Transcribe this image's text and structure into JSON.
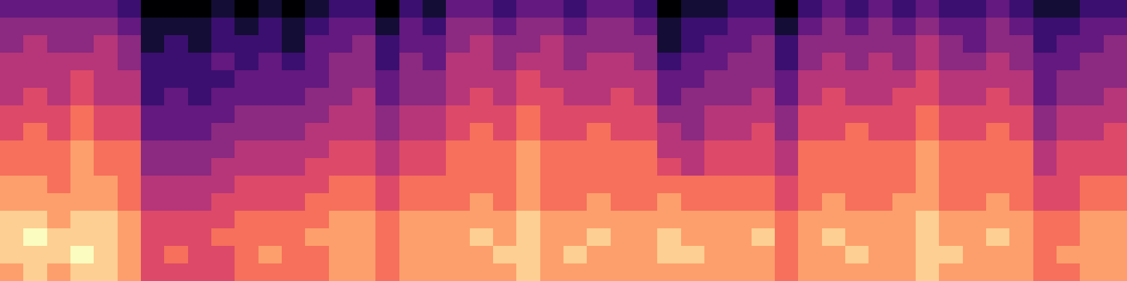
{
  "chart_data": {
    "type": "heatmap",
    "color": "magma",
    "tick_labels": false,
    "color_range": [
      0,
      10
    ],
    "cells": [
      [
        3,
        3,
        3,
        3,
        3,
        2,
        0,
        0,
        0,
        1,
        0,
        1,
        0,
        1,
        2,
        2,
        0,
        2,
        1,
        3,
        3,
        2,
        3,
        3,
        2,
        3,
        3,
        2,
        0,
        1,
        1,
        2,
        2,
        0,
        2,
        3,
        2,
        3,
        2,
        3,
        2,
        2,
        3,
        2,
        1,
        1,
        2,
        2
      ],
      [
        4,
        4,
        4,
        4,
        4,
        3,
        1,
        1,
        1,
        2,
        1,
        2,
        1,
        2,
        3,
        3,
        1,
        3,
        2,
        4,
        4,
        3,
        4,
        4,
        3,
        4,
        4,
        3,
        1,
        2,
        2,
        3,
        3,
        1,
        3,
        4,
        3,
        4,
        3,
        4,
        3,
        3,
        4,
        3,
        2,
        2,
        3,
        3
      ],
      [
        4,
        5,
        4,
        4,
        5,
        4,
        1,
        2,
        1,
        2,
        2,
        2,
        1,
        3,
        3,
        4,
        2,
        3,
        3,
        4,
        5,
        4,
        4,
        5,
        4,
        4,
        4,
        4,
        1,
        2,
        3,
        3,
        4,
        2,
        4,
        4,
        4,
        4,
        4,
        5,
        4,
        3,
        4,
        4,
        2,
        3,
        3,
        4
      ],
      [
        5,
        5,
        5,
        5,
        5,
        4,
        2,
        2,
        2,
        3,
        2,
        3,
        2,
        3,
        4,
        4,
        2,
        4,
        3,
        5,
        5,
        4,
        5,
        5,
        4,
        5,
        5,
        4,
        2,
        3,
        3,
        4,
        4,
        2,
        4,
        5,
        4,
        5,
        4,
        5,
        4,
        4,
        5,
        4,
        3,
        3,
        4,
        4
      ],
      [
        5,
        5,
        5,
        6,
        5,
        5,
        2,
        2,
        2,
        2,
        3,
        3,
        3,
        3,
        4,
        4,
        3,
        4,
        4,
        5,
        5,
        5,
        6,
        5,
        5,
        5,
        5,
        5,
        3,
        3,
        4,
        4,
        4,
        3,
        5,
        5,
        5,
        5,
        5,
        6,
        5,
        5,
        5,
        5,
        3,
        4,
        4,
        4
      ],
      [
        5,
        6,
        5,
        6,
        5,
        5,
        2,
        3,
        2,
        3,
        3,
        3,
        3,
        4,
        4,
        5,
        3,
        4,
        4,
        5,
        6,
        5,
        6,
        6,
        5,
        5,
        6,
        5,
        3,
        4,
        4,
        4,
        5,
        3,
        5,
        6,
        5,
        5,
        6,
        6,
        5,
        5,
        6,
        5,
        3,
        4,
        4,
        5
      ],
      [
        6,
        6,
        6,
        7,
        6,
        6,
        3,
        3,
        3,
        3,
        4,
        4,
        4,
        4,
        5,
        5,
        4,
        5,
        5,
        6,
        6,
        6,
        7,
        6,
        6,
        6,
        6,
        6,
        4,
        4,
        5,
        5,
        5,
        4,
        6,
        6,
        6,
        6,
        6,
        7,
        6,
        6,
        6,
        6,
        4,
        5,
        5,
        5
      ],
      [
        6,
        7,
        6,
        7,
        6,
        6,
        3,
        3,
        3,
        4,
        4,
        4,
        4,
        5,
        5,
        5,
        4,
        5,
        5,
        6,
        7,
        6,
        7,
        6,
        6,
        7,
        6,
        6,
        5,
        4,
        5,
        5,
        6,
        4,
        6,
        6,
        7,
        6,
        6,
        7,
        6,
        6,
        7,
        6,
        4,
        5,
        5,
        6
      ],
      [
        7,
        7,
        7,
        8,
        7,
        7,
        4,
        4,
        4,
        4,
        5,
        5,
        5,
        5,
        6,
        6,
        5,
        6,
        6,
        7,
        7,
        7,
        8,
        7,
        7,
        7,
        7,
        7,
        5,
        5,
        6,
        6,
        6,
        5,
        7,
        7,
        7,
        7,
        7,
        8,
        7,
        7,
        7,
        7,
        5,
        6,
        6,
        6
      ],
      [
        7,
        7,
        7,
        8,
        7,
        7,
        4,
        4,
        4,
        5,
        5,
        5,
        5,
        6,
        6,
        6,
        5,
        6,
        6,
        7,
        7,
        7,
        8,
        7,
        7,
        7,
        7,
        7,
        6,
        5,
        6,
        6,
        6,
        5,
        7,
        7,
        7,
        7,
        7,
        8,
        7,
        7,
        7,
        7,
        5,
        6,
        6,
        6
      ],
      [
        8,
        8,
        7,
        8,
        8,
        7,
        5,
        5,
        5,
        5,
        6,
        6,
        6,
        6,
        7,
        7,
        6,
        7,
        7,
        7,
        7,
        7,
        8,
        7,
        7,
        7,
        7,
        7,
        7,
        7,
        7,
        7,
        7,
        6,
        7,
        7,
        7,
        7,
        7,
        8,
        7,
        7,
        7,
        7,
        6,
        6,
        7,
        7
      ],
      [
        8,
        8,
        8,
        8,
        8,
        7,
        5,
        5,
        5,
        6,
        6,
        6,
        6,
        7,
        7,
        7,
        6,
        7,
        7,
        7,
        8,
        7,
        8,
        7,
        7,
        8,
        7,
        7,
        8,
        7,
        7,
        7,
        7,
        6,
        7,
        8,
        7,
        7,
        8,
        8,
        7,
        7,
        8,
        7,
        6,
        6,
        7,
        7
      ],
      [
        9,
        9,
        8,
        9,
        9,
        8,
        6,
        6,
        6,
        6,
        7,
        7,
        7,
        7,
        8,
        8,
        7,
        8,
        8,
        8,
        8,
        8,
        9,
        8,
        8,
        8,
        8,
        8,
        8,
        8,
        8,
        8,
        8,
        7,
        8,
        8,
        8,
        8,
        8,
        9,
        8,
        8,
        8,
        8,
        7,
        7,
        8,
        8
      ],
      [
        9,
        10,
        9,
        9,
        9,
        8,
        6,
        6,
        6,
        7,
        7,
        7,
        7,
        8,
        8,
        8,
        7,
        8,
        8,
        8,
        9,
        8,
        9,
        8,
        8,
        9,
        8,
        8,
        9,
        8,
        8,
        8,
        9,
        7,
        8,
        9,
        8,
        8,
        8,
        9,
        8,
        8,
        9,
        8,
        7,
        7,
        8,
        8
      ],
      [
        9,
        9,
        9,
        10,
        9,
        8,
        6,
        7,
        6,
        6,
        7,
        8,
        7,
        7,
        8,
        8,
        7,
        8,
        8,
        8,
        8,
        9,
        9,
        8,
        9,
        8,
        8,
        8,
        9,
        9,
        8,
        8,
        8,
        7,
        8,
        8,
        9,
        8,
        8,
        9,
        9,
        8,
        8,
        8,
        7,
        8,
        8,
        8
      ],
      [
        8,
        9,
        8,
        9,
        9,
        8,
        6,
        6,
        6,
        6,
        7,
        7,
        7,
        7,
        8,
        8,
        7,
        8,
        8,
        8,
        8,
        8,
        9,
        8,
        8,
        8,
        8,
        8,
        8,
        8,
        8,
        8,
        8,
        7,
        8,
        8,
        8,
        8,
        8,
        9,
        8,
        8,
        8,
        8,
        7,
        7,
        8,
        8
      ]
    ]
  }
}
